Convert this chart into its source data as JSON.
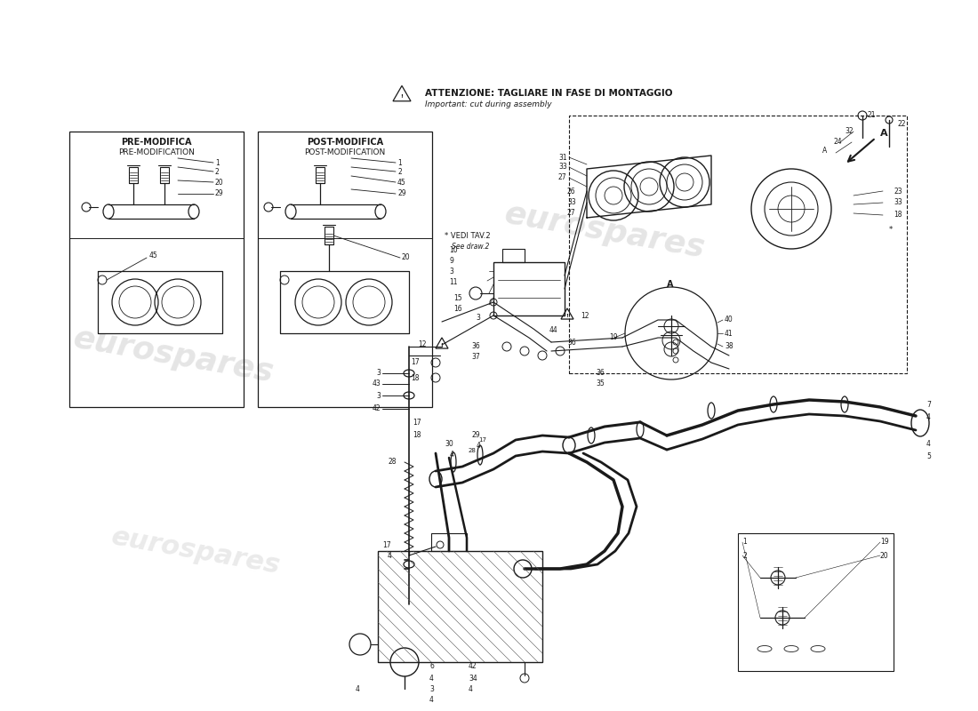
{
  "bg_color": "#ffffff",
  "line_color": "#1a1a1a",
  "warning_text": "ATTENZIONE: TAGLIARE IN FASE DI MONTAGGIO",
  "warning_subtext": "Important: cut during assembly",
  "note1": "* VEDI TAV.2",
  "note2": "  See draw.2",
  "pre_mod1": "PRE-MODIFICA",
  "pre_mod2": "PRE-MODIFICATION",
  "post_mod1": "POST-MODIFICA",
  "post_mod2": "POST-MODIFICATION",
  "watermark": "eurospares"
}
